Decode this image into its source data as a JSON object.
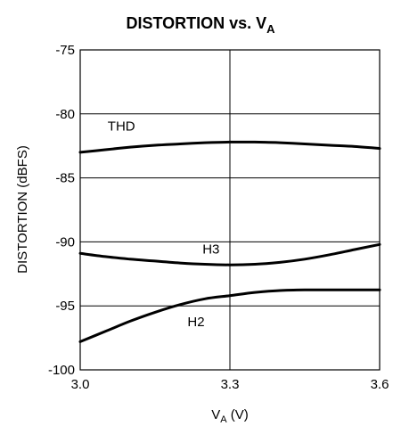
{
  "chart_data": {
    "type": "line",
    "title": "DISTORTION vs. V",
    "title_subscript": "A",
    "xlabel": "V",
    "xlabel_subscript": "A",
    "xlabel_unit": " (V)",
    "ylabel": "DISTORTION (dBFS)",
    "xlim": [
      3.0,
      3.6
    ],
    "ylim": [
      -100,
      -75
    ],
    "x_ticks": [
      3.0,
      3.3,
      3.6
    ],
    "x_tick_labels": [
      "3.0",
      "3.3",
      "3.6"
    ],
    "y_ticks": [
      -75,
      -80,
      -85,
      -90,
      -95,
      -100
    ],
    "y_tick_labels": [
      "-75",
      "-80",
      "-85",
      "-90",
      "-95",
      "-100"
    ],
    "grid": true,
    "legend": "none",
    "series": [
      {
        "name": "THD",
        "x": [
          3.0,
          3.05,
          3.1,
          3.15,
          3.2,
          3.25,
          3.3,
          3.35,
          3.4,
          3.45,
          3.5,
          3.55,
          3.6
        ],
        "y": [
          -83.0,
          -82.8,
          -82.6,
          -82.45,
          -82.35,
          -82.25,
          -82.2,
          -82.2,
          -82.25,
          -82.35,
          -82.45,
          -82.55,
          -82.7
        ]
      },
      {
        "name": "H3",
        "x": [
          3.0,
          3.05,
          3.1,
          3.15,
          3.2,
          3.25,
          3.3,
          3.35,
          3.4,
          3.45,
          3.5,
          3.55,
          3.6
        ],
        "y": [
          -90.9,
          -91.15,
          -91.35,
          -91.5,
          -91.65,
          -91.75,
          -91.8,
          -91.75,
          -91.6,
          -91.35,
          -91.0,
          -90.6,
          -90.2
        ]
      },
      {
        "name": "H2",
        "x": [
          3.0,
          3.05,
          3.1,
          3.15,
          3.2,
          3.25,
          3.3,
          3.35,
          3.4,
          3.45,
          3.5,
          3.55,
          3.6
        ],
        "y": [
          -97.8,
          -97.0,
          -96.2,
          -95.5,
          -94.9,
          -94.45,
          -94.2,
          -93.95,
          -93.8,
          -93.75,
          -93.75,
          -93.75,
          -93.75
        ]
      }
    ]
  }
}
